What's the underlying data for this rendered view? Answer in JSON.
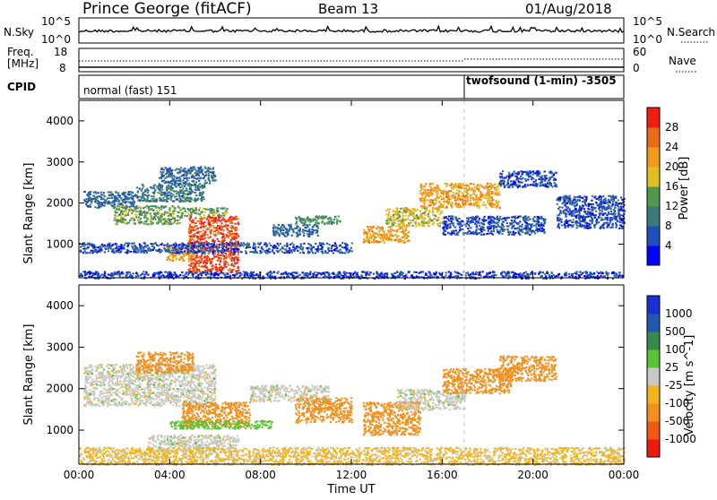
{
  "header": {
    "station": "Prince George (fitACF)",
    "beam": "Beam 13",
    "date": "01/Aug/2018"
  },
  "noise_panel": {
    "left_label": "N.Sky",
    "right_label": "N.Search",
    "left_ticks": [
      "10^5",
      "10^0"
    ],
    "right_ticks": [
      "10^5",
      "10^0"
    ]
  },
  "freq_panel": {
    "left_label_1": "Freq.",
    "left_label_2": "[MHz]",
    "left_ticks": [
      "18",
      "8"
    ],
    "right_label": "Nave",
    "right_ticks": [
      "60",
      "0"
    ]
  },
  "cpid_panel": {
    "label": "CPID",
    "modes": [
      {
        "name": "normal (fast) 151",
        "start_hour": 0
      },
      {
        "name": "twofsound (1-min) -3505",
        "start_hour": 17.0
      }
    ]
  },
  "colors": {
    "power_scale": [
      "#0000ff",
      "#1f4fbf",
      "#3a7a78",
      "#4e9a4a",
      "#e0c020",
      "#f39a1a",
      "#ef6a14",
      "#f21d0e"
    ],
    "velocity_scale": [
      "#1a2fd4",
      "#2358b0",
      "#3a8a4e",
      "#57c430",
      "#c8c8c4",
      "#f2b41a",
      "#f2901f",
      "#ef5a10",
      "#ee1a0e"
    ],
    "noise_trace": "#000000"
  },
  "chart_data": [
    {
      "type": "heatmap",
      "panel": "power",
      "xlabel": "Time UT",
      "ylabel": "Slant Range [km]",
      "colorbar_label": "Power [dB]",
      "colorbar_ticks": [
        "28",
        "24",
        "20",
        "16",
        "12",
        "8",
        "4"
      ],
      "x_ticks": [
        "00:00",
        "04:00",
        "08:00",
        "12:00",
        "16:00",
        "20:00",
        "00:00"
      ],
      "y_ticks": [
        "4000",
        "3000",
        "2000",
        "1000"
      ],
      "xlim_hours": [
        0,
        24
      ],
      "ylim_km": [
        180,
        4500
      ],
      "regions": [
        {
          "t0": 0.2,
          "t1": 2.5,
          "r0": 1900,
          "r1": 2300,
          "power": 8
        },
        {
          "t0": 1.5,
          "t1": 4.5,
          "r0": 1500,
          "r1": 1950,
          "power": 14
        },
        {
          "t0": 2.5,
          "t1": 5.5,
          "r0": 2050,
          "r1": 2500,
          "power": 10
        },
        {
          "t0": 3.5,
          "t1": 6.0,
          "r0": 2500,
          "r1": 2900,
          "power": 8
        },
        {
          "t0": 4.5,
          "t1": 6.5,
          "r0": 1700,
          "r1": 1900,
          "power": 14
        },
        {
          "t0": 4.8,
          "t1": 7.0,
          "r0": 300,
          "r1": 1700,
          "power": 28
        },
        {
          "t0": 3.8,
          "t1": 5.0,
          "r0": 600,
          "r1": 1000,
          "power": 22
        },
        {
          "t0": 0.0,
          "t1": 12.0,
          "r0": 800,
          "r1": 1050,
          "power": 6
        },
        {
          "t0": 8.5,
          "t1": 10.5,
          "r0": 1200,
          "r1": 1500,
          "power": 8
        },
        {
          "t0": 9.5,
          "t1": 11.5,
          "r0": 1500,
          "r1": 1700,
          "power": 12
        },
        {
          "t0": 12.5,
          "t1": 14.5,
          "r0": 1050,
          "r1": 1450,
          "power": 22
        },
        {
          "t0": 13.5,
          "t1": 16.0,
          "r0": 1450,
          "r1": 1900,
          "power": 18
        },
        {
          "t0": 15.0,
          "t1": 18.5,
          "r0": 1900,
          "r1": 2500,
          "power": 22
        },
        {
          "t0": 16.0,
          "t1": 20.5,
          "r0": 1250,
          "r1": 1700,
          "power": 6
        },
        {
          "t0": 18.5,
          "t1": 21.0,
          "r0": 2400,
          "r1": 2800,
          "power": 6
        },
        {
          "t0": 21.0,
          "t1": 24.0,
          "r0": 1400,
          "r1": 2200,
          "power": 6
        },
        {
          "t0": 0.0,
          "t1": 24.0,
          "r0": 180,
          "r1": 350,
          "power": 5
        }
      ]
    },
    {
      "type": "heatmap",
      "panel": "velocity",
      "xlabel": "Time UT",
      "ylabel": "Slant Range [km]",
      "colorbar_label": "Velocity [m s^-1]",
      "colorbar_ticks": [
        "1000",
        "500",
        "100",
        "25",
        "-25",
        "-100",
        "-500",
        "-1000"
      ],
      "x_ticks": [
        "00:00",
        "04:00",
        "08:00",
        "12:00",
        "16:00",
        "20:00",
        "00:00"
      ],
      "y_ticks": [
        "4000",
        "3000",
        "2000",
        "1000"
      ],
      "xlim_hours": [
        0,
        24
      ],
      "ylim_km": [
        180,
        4500
      ],
      "regions": [
        {
          "t0": 0.2,
          "t1": 6.0,
          "r0": 1600,
          "r1": 2600,
          "velocity": 0
        },
        {
          "t0": 2.5,
          "t1": 5.0,
          "r0": 2400,
          "r1": 2900,
          "velocity": -150
        },
        {
          "t0": 4.5,
          "t1": 7.5,
          "r0": 1100,
          "r1": 1700,
          "velocity": -300
        },
        {
          "t0": 3.0,
          "t1": 7.0,
          "r0": 500,
          "r1": 900,
          "velocity": 0
        },
        {
          "t0": 4.0,
          "t1": 8.5,
          "r0": 1050,
          "r1": 1250,
          "velocity": 60
        },
        {
          "t0": 7.5,
          "t1": 11.0,
          "r0": 1700,
          "r1": 2100,
          "velocity": 0
        },
        {
          "t0": 9.5,
          "t1": 12.0,
          "r0": 1200,
          "r1": 1800,
          "velocity": -300
        },
        {
          "t0": 12.5,
          "t1": 15.0,
          "r0": 900,
          "r1": 1700,
          "velocity": -400
        },
        {
          "t0": 14.0,
          "t1": 17.0,
          "r0": 1500,
          "r1": 2000,
          "velocity": 0
        },
        {
          "t0": 16.0,
          "t1": 19.0,
          "r0": 1900,
          "r1": 2500,
          "velocity": -450
        },
        {
          "t0": 18.5,
          "t1": 21.0,
          "r0": 2200,
          "r1": 2800,
          "velocity": -200
        },
        {
          "t0": 0.0,
          "t1": 24.0,
          "r0": 180,
          "r1": 600,
          "velocity": -40
        }
      ]
    }
  ]
}
